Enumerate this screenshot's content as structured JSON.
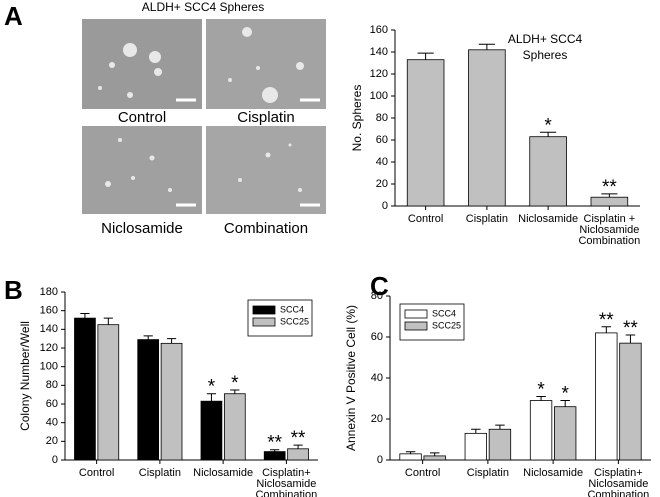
{
  "panels": {
    "a": "A",
    "b": "B",
    "c": "C"
  },
  "micrographs": {
    "title": "ALDH+ SCC4  Spheres",
    "labels": [
      "Control",
      "Cisplatin",
      "Niclosamide",
      "Combination"
    ]
  },
  "chart_data": [
    {
      "type": "bar",
      "ylabel": "No. Spheres",
      "annotation": [
        "ALDH+ SCC4",
        "Spheres"
      ],
      "categories": [
        "Control",
        "Cisplatin",
        "Niclosamide",
        [
          "Cisplatin +",
          "Niclosamide",
          "Combination"
        ]
      ],
      "values": [
        133,
        142,
        63,
        8
      ],
      "errors": [
        6,
        5,
        4,
        3
      ],
      "markers": [
        null,
        null,
        "*",
        "**"
      ],
      "color": "#c0c0c0",
      "ylim": [
        0,
        160
      ],
      "yticks": [
        0,
        20,
        40,
        60,
        80,
        100,
        120,
        140,
        160
      ],
      "grid": false
    },
    {
      "type": "bar",
      "ylabel": "Colony Number/Well",
      "legend": "upper right",
      "categories": [
        "Control",
        "Cisplatin",
        "Niclosamide",
        [
          "Cisplatin+",
          "Niclosamide",
          "Combination"
        ]
      ],
      "series": [
        {
          "name": "SCC4",
          "color": "#000000",
          "values": [
            152,
            129,
            63,
            9
          ],
          "errors": [
            5,
            4,
            8,
            2
          ],
          "markers": [
            null,
            null,
            "*",
            "**"
          ]
        },
        {
          "name": "SCC25",
          "color": "#c0c0c0",
          "values": [
            145,
            125,
            71,
            12
          ],
          "errors": [
            7,
            5,
            4,
            4
          ],
          "markers": [
            null,
            null,
            "*",
            "**"
          ]
        }
      ],
      "ylim": [
        0,
        180
      ],
      "yticks": [
        0,
        20,
        40,
        60,
        80,
        100,
        120,
        140,
        160,
        180
      ],
      "grid": false
    },
    {
      "type": "bar",
      "ylabel": "Annexin V Positive Cell (%)",
      "legend": "upper left",
      "categories": [
        "Control",
        "Cisplatin",
        "Niclosamide",
        [
          "Cisplatin+",
          "Niclosamide",
          "Combination"
        ]
      ],
      "series": [
        {
          "name": "SCC4",
          "color": "#ffffff",
          "values": [
            3,
            13,
            29,
            62
          ],
          "errors": [
            1,
            2,
            2,
            3
          ],
          "markers": [
            null,
            null,
            "*",
            "**"
          ]
        },
        {
          "name": "SCC25",
          "color": "#c0c0c0",
          "values": [
            2,
            15,
            26,
            57
          ],
          "errors": [
            1.5,
            2,
            3,
            4
          ],
          "markers": [
            null,
            null,
            "*",
            "**"
          ]
        }
      ],
      "ylim": [
        0,
        80
      ],
      "yticks": [
        0,
        20,
        40,
        60,
        80
      ],
      "grid": false
    }
  ]
}
